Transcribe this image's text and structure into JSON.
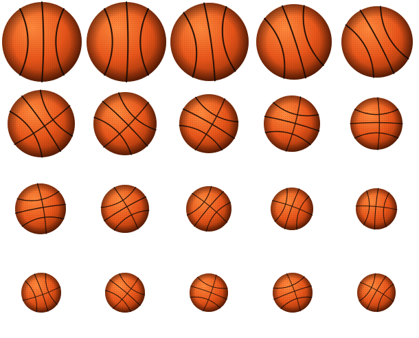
{
  "scene": {
    "subject": "basketball",
    "rows": [
      {
        "row": 1,
        "count": 5
      },
      {
        "row": 2,
        "count": 5
      },
      {
        "row": 3,
        "count": 5
      },
      {
        "row": 4,
        "count": 5
      }
    ],
    "colors": {
      "background": "#ffffff",
      "ball_highlight": "#ff8a3d",
      "ball_base": "#e8551a",
      "ball_shadow": "#8a2a05",
      "seam": "#2a1206"
    }
  }
}
